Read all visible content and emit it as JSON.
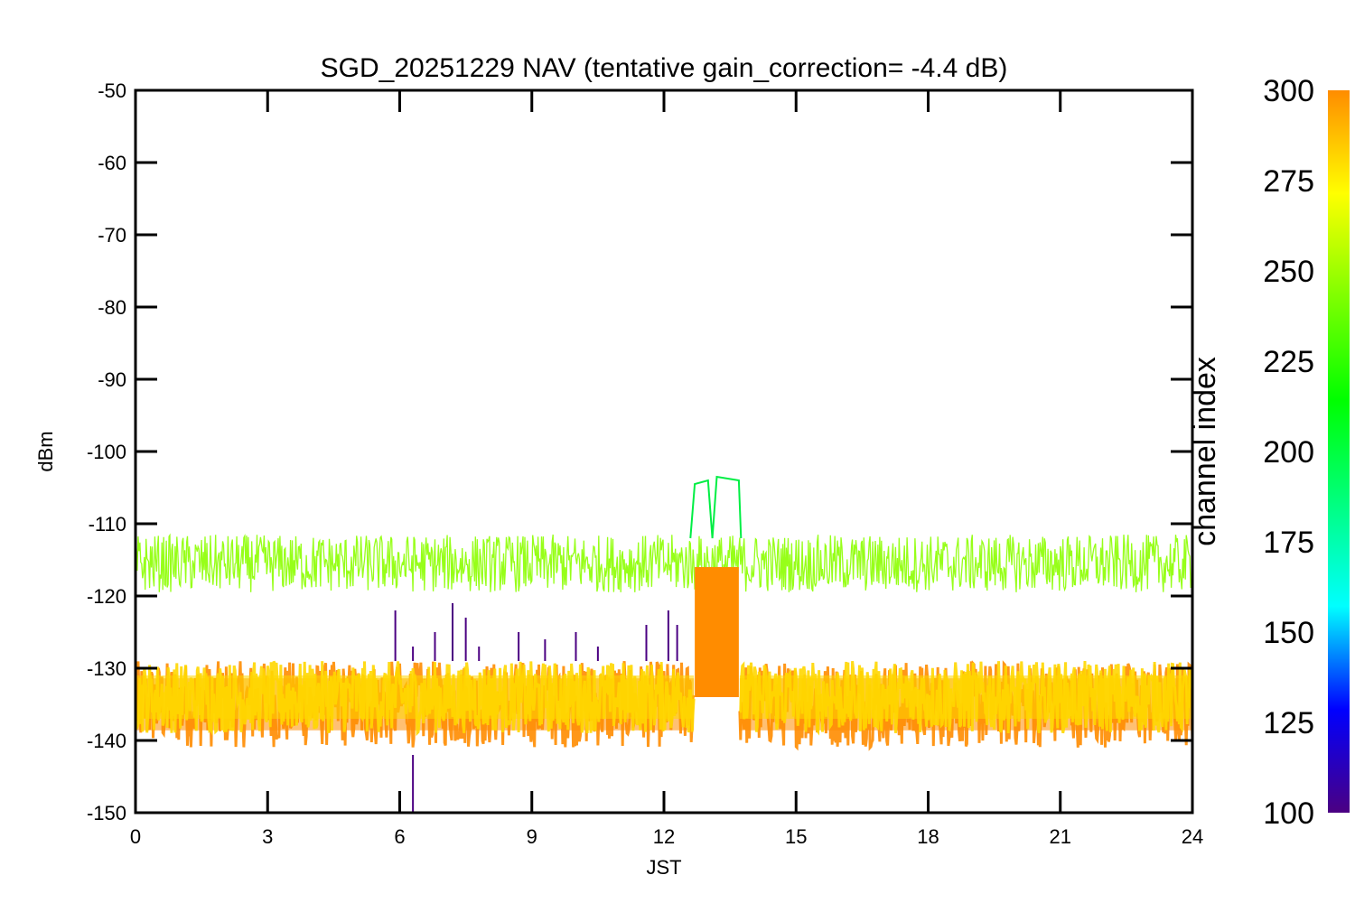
{
  "chart_data": {
    "type": "line",
    "title": "SGD_20251229 NAV (tentative gain_correction= -4.4 dB)",
    "xlabel": "JST",
    "ylabel": "dBm",
    "xlim": [
      0,
      24
    ],
    "ylim": [
      -150,
      -50
    ],
    "xticks": [
      "0",
      "3",
      "6",
      "9",
      "12",
      "15",
      "18",
      "21",
      "24"
    ],
    "yticks": [
      "-50",
      "-60",
      "-70",
      "-80",
      "-90",
      "-100",
      "-110",
      "-120",
      "-130",
      "-140",
      "-150"
    ],
    "grid": false,
    "colorbar": {
      "label": "channel index",
      "range": [
        100,
        300
      ],
      "ticks": [
        "300",
        "275",
        "250",
        "225",
        "200",
        "175",
        "150",
        "125",
        "100"
      ],
      "colormap": [
        "#4b0082",
        "#0000ff",
        "#00ffff",
        "#00ff7f",
        "#00ff00",
        "#7fff00",
        "#ffff00",
        "#ff8c00"
      ]
    },
    "series": [
      {
        "color": "#ff8c00",
        "band": "dense",
        "base_dbm": -135,
        "spread_dbm": 6,
        "note_values": "x_hours 0-24, except gap 12.7-13.7"
      },
      {
        "color": "#ffd700",
        "band": "dense",
        "base_dbm": -134,
        "spread_dbm": 5
      },
      {
        "color": "#8cff00",
        "band": "upper",
        "base_dbm": -115.5,
        "spread_dbm": 4
      },
      {
        "color": "#00ee44",
        "band": "burst",
        "x": [
          12.6,
          12.7,
          13.0,
          13.1,
          13.2,
          13.7,
          13.75
        ],
        "y": [
          -112,
          -104.5,
          -104,
          -112,
          -103.5,
          -104,
          -112
        ]
      },
      {
        "color": "#ff8c00",
        "band": "burst",
        "x": [
          12.7,
          13.7
        ],
        "y": [
          -122,
          -122
        ]
      }
    ],
    "spikes_purple": [
      {
        "x": 5.9,
        "y": -122
      },
      {
        "x": 6.3,
        "y": -127
      },
      {
        "x": 6.8,
        "y": -125
      },
      {
        "x": 7.2,
        "y": -121
      },
      {
        "x": 7.5,
        "y": -123
      },
      {
        "x": 7.8,
        "y": -127
      },
      {
        "x": 8.7,
        "y": -125
      },
      {
        "x": 9.3,
        "y": -126
      },
      {
        "x": 10.0,
        "y": -125
      },
      {
        "x": 10.5,
        "y": -127
      },
      {
        "x": 11.6,
        "y": -124
      },
      {
        "x": 12.1,
        "y": -122
      },
      {
        "x": 12.3,
        "y": -124
      },
      {
        "x": 6.3,
        "y": -150
      }
    ]
  }
}
